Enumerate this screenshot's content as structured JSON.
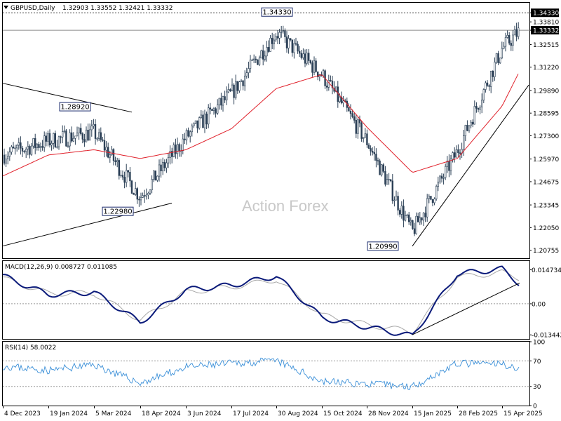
{
  "header": {
    "symbol_line": "GBPUSD,Daily",
    "ohlc": "1.32903 1.33552 1.32421 1.33332"
  },
  "watermark": "Action Forex",
  "colors": {
    "candles": "#2a3f55",
    "ma": "#e0202a",
    "macd": "#0a1a7a",
    "signal": "#a8a8a8",
    "rsi": "#3a8fd8",
    "trend": "#000000"
  },
  "chart_data": [
    {
      "type": "candlestick",
      "panel": "price",
      "ylim": [
        1.203,
        1.349
      ],
      "y_ticks": [
        "1.34330",
        "1.33810",
        "1.33332",
        "1.32515",
        "1.31220",
        "1.29890",
        "1.28595",
        "1.27300",
        "1.25970",
        "1.24675",
        "1.23345",
        "1.22050",
        "1.20755"
      ],
      "current_price_label": "1.33332",
      "x_ticks": [
        "4 Dec 2023",
        "19 Jan 2024",
        "5 Mar 2024",
        "18 Apr 2024",
        "3 Jun 2024",
        "17 Jul 2024",
        "30 Aug 2024",
        "15 Oct 2024",
        "28 Nov 2024",
        "15 Jan 2025",
        "28 Feb 2025",
        "15 Apr 2025"
      ],
      "annotations": [
        {
          "text": "1.34330",
          "x": "30 Aug 2024",
          "y": 1.3433
        },
        {
          "text": "1.28920",
          "x": "5 Mar 2024",
          "y": 1.2892
        },
        {
          "text": "1.22980",
          "x": "18 Apr 2024",
          "y": 1.2298
        },
        {
          "text": "1.20990",
          "x": "15 Jan 2025",
          "y": 1.2099
        }
      ],
      "price_path": [
        [
          "4 Dec 2023",
          1.262
        ],
        [
          "19 Jan 2024",
          1.27
        ],
        [
          "5 Mar 2024",
          1.275
        ],
        [
          "18 Apr 2024",
          1.238
        ],
        [
          "3 Jun 2024",
          1.272
        ],
        [
          "17 Jul 2024",
          1.297
        ],
        [
          "30 Aug 2024",
          1.332
        ],
        [
          "15 Oct 2024",
          1.308
        ],
        [
          "28 Nov 2024",
          1.27
        ],
        [
          "15 Jan 2025",
          1.218
        ],
        [
          "28 Feb 2025",
          1.264
        ],
        [
          "15 Apr 2025",
          1.323
        ],
        [
          "end",
          1.333
        ]
      ],
      "moving_average": [
        [
          "4 Dec 2023",
          1.25
        ],
        [
          "19 Jan 2024",
          1.262
        ],
        [
          "5 Mar 2024",
          1.265
        ],
        [
          "18 Apr 2024",
          1.26
        ],
        [
          "3 Jun 2024",
          1.265
        ],
        [
          "17 Jul 2024",
          1.277
        ],
        [
          "30 Aug 2024",
          1.3
        ],
        [
          "15 Oct 2024",
          1.308
        ],
        [
          "28 Nov 2024",
          1.278
        ],
        [
          "15 Jan 2025",
          1.252
        ],
        [
          "28 Feb 2025",
          1.26
        ],
        [
          "15 Apr 2025",
          1.29
        ],
        [
          "end",
          1.31
        ]
      ],
      "trendlines": [
        {
          "from": [
            "start",
            1.303
          ],
          "to": [
            "5 Mar 2024",
            1.2865
          ]
        },
        {
          "from": [
            "start",
            1.21
          ],
          "to": [
            "18 Apr 2024",
            1.2345
          ]
        },
        {
          "from": [
            "15 Jan 2025",
            1.2099
          ],
          "to": [
            "end",
            1.302
          ]
        }
      ]
    },
    {
      "type": "line",
      "panel": "macd",
      "title": "MACD(12,26,9) 0.008727 0.011085",
      "ylim": [
        -0.0152,
        0.0185
      ],
      "y_ticks": [
        "0.014734",
        "0.00",
        "-0.013442"
      ],
      "series": [
        {
          "values": [
            [
              "4 Dec 2023",
              0.012
            ],
            [
              "19 Jan 2024",
              0.004
            ],
            [
              "5 Mar 2024",
              0.005
            ],
            [
              "18 Apr 2024",
              -0.008
            ],
            [
              "3 Jun 2024",
              0.006
            ],
            [
              "17 Jul 2024",
              0.008
            ],
            [
              "30 Aug 2024",
              0.012
            ],
            [
              "15 Oct 2024",
              -0.006
            ],
            [
              "28 Nov 2024",
              -0.01
            ],
            [
              "15 Jan 2025",
              -0.014
            ],
            [
              "28 Feb 2025",
              0.013
            ],
            [
              "15 Apr 2025",
              0.015
            ],
            [
              "end",
              0.0087
            ]
          ]
        },
        {
          "values": [
            [
              "4 Dec 2023",
              0.011
            ],
            [
              "19 Jan 2024",
              0.0045
            ],
            [
              "5 Mar 2024",
              0.0045
            ],
            [
              "18 Apr 2024",
              -0.007
            ],
            [
              "3 Jun 2024",
              0.005
            ],
            [
              "17 Jul 2024",
              0.0072
            ],
            [
              "30 Aug 2024",
              0.0105
            ],
            [
              "15 Oct 2024",
              -0.005
            ],
            [
              "28 Nov 2024",
              -0.009
            ],
            [
              "15 Jan 2025",
              -0.012
            ],
            [
              "28 Feb 2025",
              0.0115
            ],
            [
              "15 Apr 2025",
              0.0135
            ],
            [
              "end",
              0.0111
            ]
          ]
        }
      ],
      "trendlines": [
        {
          "from": [
            "15 Jan 2025",
            -0.0134
          ],
          "to": [
            "end",
            0.009
          ]
        }
      ]
    },
    {
      "type": "line",
      "panel": "rsi",
      "title": "RSI(14) 58.0022",
      "ylim": [
        0,
        100
      ],
      "y_ticks": [
        "100",
        "70",
        "30",
        "0"
      ],
      "levels": [
        70,
        30
      ],
      "series": [
        {
          "values": [
            [
              "4 Dec 2023",
              62
            ],
            [
              "19 Jan 2024",
              55
            ],
            [
              "5 Mar 2024",
              64
            ],
            [
              "18 Apr 2024",
              35
            ],
            [
              "3 Jun 2024",
              60
            ],
            [
              "17 Jul 2024",
              66
            ],
            [
              "30 Aug 2024",
              70
            ],
            [
              "15 Oct 2024",
              38
            ],
            [
              "28 Nov 2024",
              34
            ],
            [
              "15 Jan 2025",
              30
            ],
            [
              "28 Feb 2025",
              66
            ],
            [
              "15 Apr 2025",
              65
            ],
            [
              "end",
              58
            ]
          ]
        }
      ]
    }
  ]
}
